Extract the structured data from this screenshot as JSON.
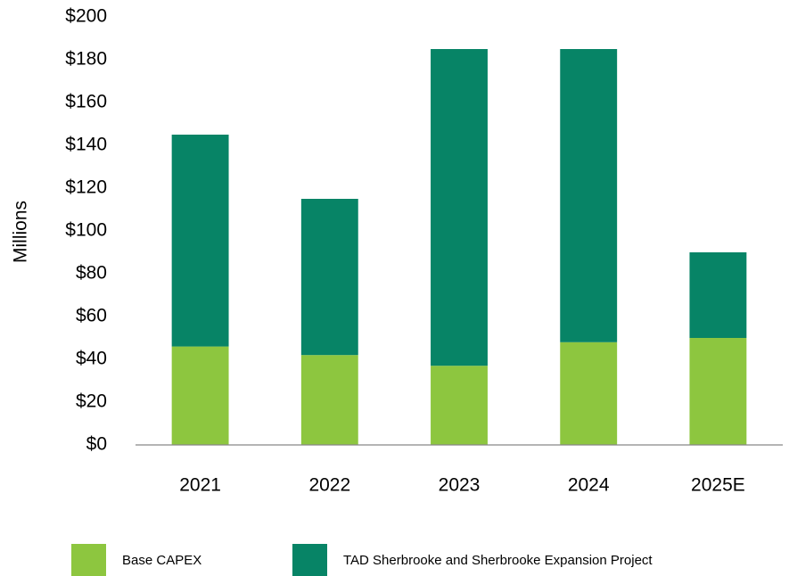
{
  "chart_data": {
    "type": "stacked_bar",
    "y_label": "Millions",
    "categories": [
      "2021",
      "2022",
      "2023",
      "2024",
      "2025E"
    ],
    "series": [
      {
        "name": "Base CAPEX",
        "color": "#8dc63f",
        "values": [
          46,
          42,
          37,
          48,
          50
        ]
      },
      {
        "name": "TAD Sherbrooke and Sherbrooke Expansion Project",
        "color": "#078466",
        "values": [
          99,
          73,
          148,
          137,
          40
        ]
      }
    ],
    "ylim": [
      0,
      200
    ],
    "yticks": [
      {
        "value": 0,
        "label": "$0"
      },
      {
        "value": 20,
        "label": "$20"
      },
      {
        "value": 40,
        "label": "$40"
      },
      {
        "value": 60,
        "label": "$60"
      },
      {
        "value": 80,
        "label": "$80"
      },
      {
        "value": 100,
        "label": "$100"
      },
      {
        "value": 120,
        "label": "$120"
      },
      {
        "value": 140,
        "label": "$140"
      },
      {
        "value": 160,
        "label": "$160"
      },
      {
        "value": 180,
        "label": "$180"
      },
      {
        "value": 200,
        "label": "$200"
      }
    ],
    "grid": false,
    "legend": "bottom"
  }
}
